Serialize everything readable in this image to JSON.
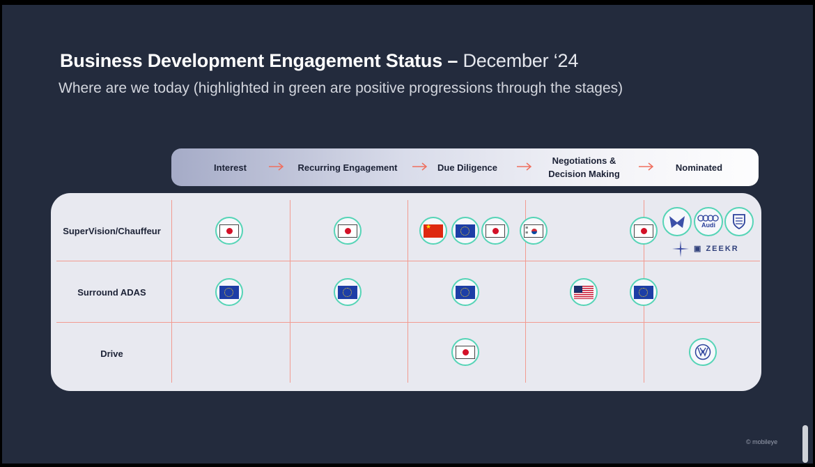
{
  "slide": {
    "title_bold": "Business Development Engagement Status –",
    "title_light": " December ‘24",
    "subtitle": "Where are we today (highlighted in green are positive progressions through the stages)",
    "copyright": "© mobileye"
  },
  "stages": [
    "Interest",
    "Recurring Engagement",
    "Due Diligence",
    "Negotiations & Decision Making",
    "Nominated"
  ],
  "rows": [
    "SuperVision/Chauffeur",
    "Surround ADAS",
    "Drive"
  ],
  "badges": {
    "supervision": [
      "japan-flag",
      "japan-flag",
      "china-flag",
      "eu-flag",
      "japan-flag",
      "korea-flag",
      "japan-flag",
      "mahindra-logo",
      "audi-logo",
      "porsche-logo"
    ],
    "surround": [
      "eu-flag",
      "eu-flag",
      "eu-flag",
      "usa-flag",
      "eu-flag"
    ],
    "drive": [
      "japan-flag",
      "volkswagen-logo"
    ]
  },
  "logos": {
    "audi": "Audi",
    "zeekr": "ZEEKR"
  },
  "colors": {
    "background": "#232b3d",
    "badge_ring": "#55d4b6",
    "grid_lines": "#f29a90",
    "arrow": "#ef6f5e"
  }
}
